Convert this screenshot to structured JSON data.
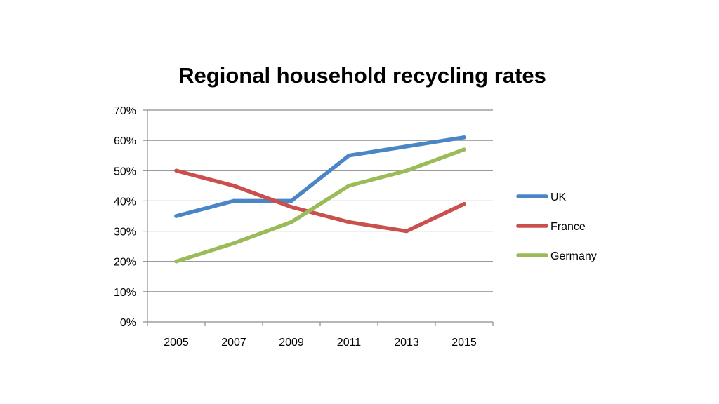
{
  "chart_data": {
    "type": "line",
    "title": "Regional household recycling rates",
    "xlabel": "",
    "ylabel": "",
    "categories": [
      "2005",
      "2007",
      "2009",
      "2011",
      "2013",
      "2015"
    ],
    "y_ticks": [
      "0%",
      "10%",
      "20%",
      "30%",
      "40%",
      "50%",
      "60%",
      "70%"
    ],
    "ylim": [
      0,
      70
    ],
    "y_unit": "%",
    "grid": true,
    "legend_position": "right",
    "series": [
      {
        "name": "UK",
        "color": "#4A86C5",
        "values": [
          35,
          40,
          40,
          55,
          58,
          61
        ]
      },
      {
        "name": "France",
        "color": "#C9504D",
        "values": [
          50,
          45,
          38,
          33,
          30,
          39
        ]
      },
      {
        "name": "Germany",
        "color": "#9BBB59",
        "values": [
          20,
          26,
          33,
          45,
          50,
          57
        ]
      }
    ]
  }
}
